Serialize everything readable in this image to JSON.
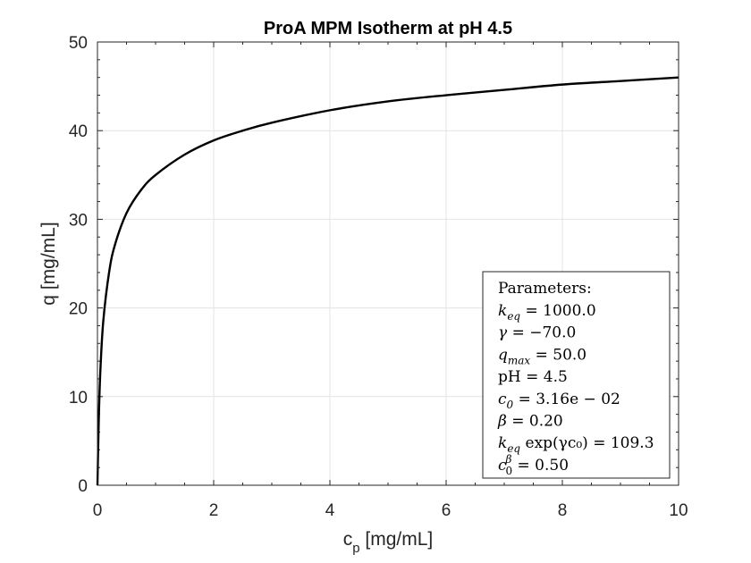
{
  "chart_data": {
    "type": "line",
    "title": "ProA MPM Isotherm at pH 4.5",
    "xlabel": {
      "main": "c",
      "sub": "p",
      "unit": " [mg/mL]"
    },
    "ylabel": "q [mg/mL]",
    "xlim": [
      0,
      10
    ],
    "ylim": [
      0,
      50
    ],
    "xticks": [
      0,
      2,
      4,
      6,
      8,
      10
    ],
    "yticks": [
      0,
      10,
      20,
      30,
      40,
      50
    ],
    "xtick_labels": [
      "0",
      "2",
      "4",
      "6",
      "8",
      "10"
    ],
    "ytick_labels": [
      "0",
      "10",
      "20",
      "30",
      "40",
      "50"
    ],
    "grid": true,
    "line_color": "#000000",
    "series": [
      {
        "x": [
          0,
          0.01,
          0.025,
          0.05,
          0.1,
          0.2,
          0.3,
          0.5,
          0.75,
          1.0,
          1.5,
          2.0,
          2.5,
          3.0,
          4.0,
          5.0,
          6.0,
          7.0,
          8.0,
          9.0,
          10.0
        ],
        "y": [
          0,
          3.5,
          8.0,
          12.9,
          18.5,
          24.0,
          27.1,
          30.7,
          33.3,
          35.0,
          37.3,
          38.9,
          40.0,
          40.9,
          42.3,
          43.3,
          44.0,
          44.6,
          45.2,
          45.6,
          46.0
        ]
      }
    ],
    "legend": {
      "position": "bottom-right",
      "header": "Parameters:",
      "lines": [
        {
          "lhs": "k",
          "sub": "eq",
          "sup": "",
          "rhs": " = 1000.0"
        },
        {
          "lhs": "γ",
          "sub": "",
          "sup": "",
          "rhs": " = −70.0"
        },
        {
          "lhs": "q",
          "sub": "max",
          "sup": "",
          "rhs": " = 50.0"
        },
        {
          "lhs": "pH",
          "sub": "",
          "sup": "",
          "rhs": " = 4.5",
          "upright": true
        },
        {
          "lhs": "c",
          "sub": "0",
          "sup": "",
          "rhs": " = 3.16e − 02"
        },
        {
          "lhs": "β",
          "sub": "",
          "sup": "",
          "rhs": " = 0.20"
        },
        {
          "lhs": "k",
          "sub": "eq",
          "sup": "",
          "rhs": " exp(γc₀) = 109.3"
        },
        {
          "lhs": "c",
          "sub": "0",
          "sup": "β",
          "rhs": " = 0.50"
        }
      ]
    }
  }
}
